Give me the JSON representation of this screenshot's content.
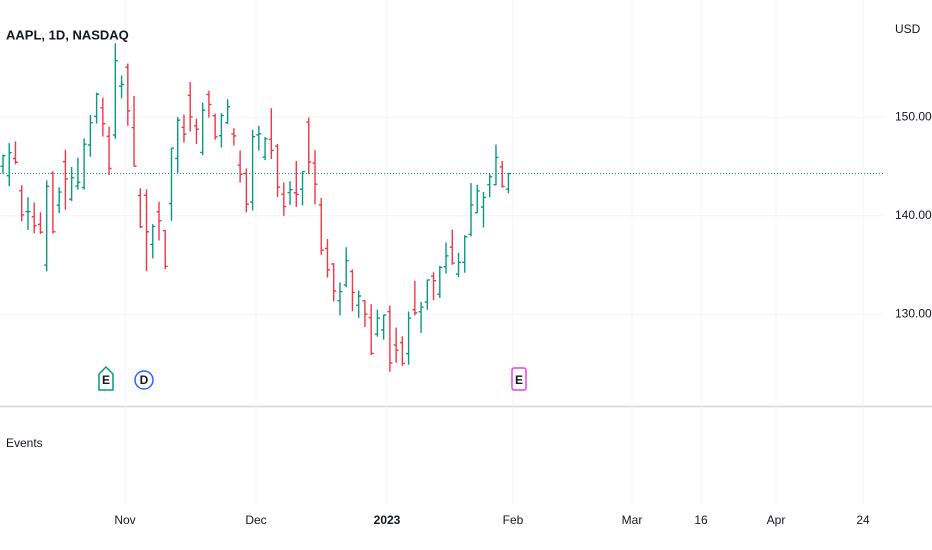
{
  "chart_data": {
    "type": "ohlc",
    "title": "AAPL, 1D, NASDAQ",
    "currency": "USD",
    "up_color": "#089981",
    "down_color": "#f23645",
    "ylim": [
      120.8,
      161.9
    ],
    "yticks": [
      {
        "value": 150,
        "label": "150.00"
      },
      {
        "value": 140,
        "label": "140.00"
      },
      {
        "value": 130,
        "label": "130.00"
      }
    ],
    "grid": true,
    "x_labels": [
      "Nov",
      "Dec",
      "2023",
      "Feb",
      "Mar",
      "16",
      "Apr",
      "24"
    ],
    "events_pane": "Events",
    "events": [
      {
        "label": "E",
        "color": "#089981"
      },
      {
        "label": "D",
        "color": "#2962ff"
      },
      {
        "label": "E",
        "color": "#e040fb"
      }
    ],
    "ohlc": [
      [
        145.03,
        146.22,
        144.26,
        146.1
      ],
      [
        144.07,
        147.38,
        143.01,
        146.4
      ],
      [
        145.81,
        147.54,
        145.22,
        145.43
      ],
      [
        142.54,
        143.1,
        139.45,
        140.09
      ],
      [
        140.42,
        141.89,
        138.57,
        140.42
      ],
      [
        139.9,
        141.35,
        138.22,
        138.98
      ],
      [
        139.13,
        140.36,
        138.16,
        138.34
      ],
      [
        134.99,
        143.59,
        134.37,
        142.99
      ],
      [
        144.31,
        144.52,
        138.19,
        138.38
      ],
      [
        141.07,
        142.9,
        140.27,
        142.41
      ],
      [
        145.49,
        146.7,
        140.61,
        143.75
      ],
      [
        141.69,
        144.95,
        141.5,
        143.86
      ],
      [
        143.02,
        145.89,
        142.65,
        143.39
      ],
      [
        142.87,
        147.85,
        142.65,
        147.27
      ],
      [
        147.19,
        150.23,
        146.0,
        149.45
      ],
      [
        150.09,
        152.49,
        149.36,
        152.34
      ],
      [
        150.96,
        151.99,
        148.04,
        149.35
      ],
      [
        148.07,
        149.05,
        144.13,
        144.8
      ],
      [
        148.2,
        157.5,
        147.82,
        155.74
      ],
      [
        153.16,
        154.24,
        151.92,
        153.34
      ],
      [
        155.08,
        155.45,
        149.13,
        150.65
      ],
      [
        148.95,
        152.17,
        145.0,
        145.03
      ],
      [
        142.06,
        142.8,
        138.75,
        138.88
      ],
      [
        142.09,
        142.67,
        134.38,
        138.38
      ],
      [
        137.11,
        139.15,
        135.67,
        138.92
      ],
      [
        140.41,
        141.43,
        137.49,
        139.5
      ],
      [
        138.5,
        138.55,
        134.59,
        134.87
      ],
      [
        141.24,
        146.87,
        139.5,
        146.87
      ],
      [
        145.82,
        150.01,
        144.37,
        149.7
      ],
      [
        148.97,
        150.28,
        147.43,
        148.28
      ],
      [
        152.22,
        153.59,
        148.56,
        150.04
      ],
      [
        149.13,
        149.87,
        147.29,
        148.79
      ],
      [
        146.43,
        151.48,
        146.15,
        150.72
      ],
      [
        152.31,
        152.7,
        149.97,
        151.29
      ],
      [
        150.16,
        150.37,
        147.72,
        148.01
      ],
      [
        148.13,
        150.42,
        146.93,
        150.18
      ],
      [
        149.45,
        151.83,
        149.34,
        151.07
      ],
      [
        148.31,
        148.88,
        147.12,
        148.11
      ],
      [
        145.14,
        146.64,
        143.38,
        144.22
      ],
      [
        144.29,
        144.81,
        140.35,
        141.17
      ],
      [
        141.4,
        148.72,
        140.55,
        148.03
      ],
      [
        148.21,
        149.13,
        146.61,
        148.31
      ],
      [
        145.96,
        148.0,
        145.65,
        147.81
      ],
      [
        147.77,
        150.92,
        145.77,
        146.63
      ],
      [
        147.07,
        147.3,
        141.92,
        142.91
      ],
      [
        142.19,
        143.37,
        140.0,
        140.94
      ],
      [
        142.36,
        143.52,
        141.1,
        142.65
      ],
      [
        142.34,
        145.57,
        140.9,
        142.16
      ],
      [
        142.7,
        144.5,
        141.06,
        144.49
      ],
      [
        149.5,
        149.97,
        144.24,
        145.47
      ],
      [
        145.35,
        146.66,
        141.16,
        143.21
      ],
      [
        141.11,
        141.8,
        136.03,
        136.5
      ],
      [
        136.69,
        137.65,
        133.73,
        134.51
      ],
      [
        135.11,
        135.2,
        131.32,
        132.37
      ],
      [
        131.39,
        133.25,
        129.89,
        132.3
      ],
      [
        132.98,
        136.81,
        132.75,
        135.45
      ],
      [
        134.35,
        134.56,
        130.3,
        132.23
      ],
      [
        130.92,
        132.42,
        129.64,
        131.86
      ],
      [
        131.38,
        131.41,
        128.72,
        130.03
      ],
      [
        129.67,
        131.03,
        125.87,
        126.04
      ],
      [
        127.99,
        130.48,
        127.73,
        129.61
      ],
      [
        128.41,
        129.95,
        127.43,
        129.93
      ],
      [
        130.28,
        130.9,
        124.17,
        125.07
      ],
      [
        126.89,
        128.66,
        125.08,
        126.36
      ],
      [
        127.13,
        127.77,
        124.76,
        125.02
      ],
      [
        126.01,
        130.29,
        124.89,
        129.62
      ],
      [
        130.47,
        133.41,
        129.89,
        130.15
      ],
      [
        130.26,
        131.26,
        128.12,
        130.73
      ],
      [
        131.25,
        133.51,
        130.46,
        133.49
      ],
      [
        133.88,
        134.26,
        131.44,
        133.41
      ],
      [
        132.03,
        134.92,
        131.66,
        134.76
      ],
      [
        134.83,
        137.29,
        134.13,
        135.94
      ],
      [
        136.82,
        138.61,
        135.03,
        135.21
      ],
      [
        134.08,
        136.25,
        133.77,
        135.27
      ],
      [
        135.28,
        138.02,
        134.22,
        137.87
      ],
      [
        138.12,
        143.32,
        137.9,
        141.11
      ],
      [
        140.31,
        143.16,
        140.3,
        142.53
      ],
      [
        140.89,
        142.43,
        138.81,
        141.86
      ],
      [
        143.17,
        144.25,
        141.9,
        143.96
      ],
      [
        143.16,
        147.23,
        143.08,
        145.93
      ],
      [
        144.96,
        145.55,
        142.85,
        143.0
      ],
      [
        142.7,
        144.34,
        142.28,
        144.29
      ]
    ]
  }
}
